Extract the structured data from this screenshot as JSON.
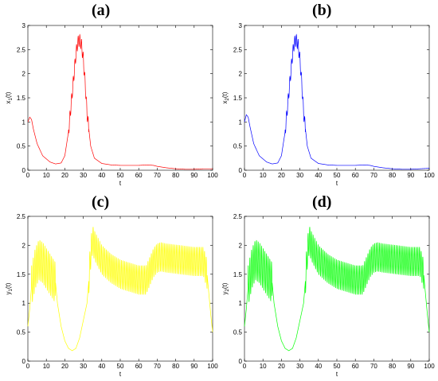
{
  "chart_data": [
    {
      "panel_label": "(a)",
      "type": "line",
      "xlabel": "t",
      "ylabel": "x",
      "ylabel_sub": "1",
      "ylabel_suffix": "(t)",
      "xlim": [
        0,
        100
      ],
      "ylim": [
        0,
        3
      ],
      "xticks": [
        0,
        10,
        20,
        30,
        40,
        50,
        60,
        70,
        80,
        90,
        100
      ],
      "yticks": [
        0,
        0.5,
        1,
        1.5,
        2,
        2.5,
        3
      ],
      "series": [
        {
          "color": "#ff0000",
          "x": [
            0,
            1,
            2,
            3,
            5,
            8,
            12,
            15,
            18,
            20,
            22,
            24,
            26,
            27,
            28,
            29,
            30,
            31,
            32,
            34,
            36,
            40,
            45,
            50,
            55,
            60,
            65,
            68,
            70,
            75,
            80,
            85,
            90,
            95,
            100
          ],
          "y": [
            1.0,
            1.1,
            1.05,
            0.85,
            0.55,
            0.3,
            0.17,
            0.13,
            0.15,
            0.3,
            0.8,
            1.6,
            2.4,
            2.65,
            2.7,
            2.6,
            2.3,
            1.8,
            1.2,
            0.5,
            0.25,
            0.14,
            0.11,
            0.1,
            0.1,
            0.1,
            0.11,
            0.1,
            0.08,
            0.05,
            0.03,
            0.02,
            0.02,
            0.03,
            0.03
          ]
        }
      ],
      "osc": {
        "from": 22,
        "to": 33,
        "amp": 0.12,
        "period": 0.9
      }
    },
    {
      "panel_label": "(b)",
      "type": "line",
      "xlabel": "t",
      "ylabel": "x",
      "ylabel_sub": "2",
      "ylabel_suffix": "(t)",
      "xlim": [
        0,
        100
      ],
      "ylim": [
        0,
        3
      ],
      "xticks": [
        0,
        10,
        20,
        30,
        40,
        50,
        60,
        70,
        80,
        90,
        100
      ],
      "yticks": [
        0,
        0.5,
        1,
        1.5,
        2,
        2.5,
        3
      ],
      "series": [
        {
          "color": "#0000ff",
          "x": [
            0,
            1,
            2,
            3,
            5,
            8,
            12,
            15,
            18,
            20,
            22,
            24,
            26,
            27,
            28,
            29,
            30,
            31,
            32,
            34,
            36,
            40,
            45,
            50,
            55,
            60,
            65,
            68,
            70,
            75,
            80,
            85,
            90,
            95,
            100
          ],
          "y": [
            1.0,
            1.15,
            1.1,
            0.9,
            0.55,
            0.3,
            0.17,
            0.13,
            0.15,
            0.3,
            0.8,
            1.6,
            2.4,
            2.65,
            2.7,
            2.6,
            2.3,
            1.8,
            1.2,
            0.5,
            0.25,
            0.14,
            0.11,
            0.1,
            0.1,
            0.1,
            0.11,
            0.1,
            0.08,
            0.05,
            0.03,
            0.02,
            0.02,
            0.03,
            0.04
          ]
        }
      ],
      "osc": {
        "from": 22,
        "to": 33,
        "amp": 0.12,
        "period": 0.9
      }
    },
    {
      "panel_label": "(c)",
      "type": "line",
      "xlabel": "t",
      "ylabel": "y",
      "ylabel_sub": "1",
      "ylabel_suffix": "(t)",
      "xlim": [
        0,
        100
      ],
      "ylim": [
        0,
        2.5
      ],
      "xticks": [
        0,
        10,
        20,
        30,
        40,
        50,
        60,
        70,
        80,
        90,
        100
      ],
      "yticks": [
        0,
        0.5,
        1,
        1.5,
        2,
        2.5
      ],
      "series": [
        {
          "color": "#ffff00",
          "x": [
            0,
            1,
            2,
            4,
            6,
            8,
            10,
            12,
            14,
            15,
            16,
            18,
            20,
            22,
            24,
            26,
            28,
            30,
            32,
            33,
            34,
            35,
            36,
            40,
            45,
            50,
            55,
            60,
            64,
            66,
            68,
            70,
            72,
            75,
            80,
            85,
            90,
            95,
            97,
            99,
            100
          ],
          "y": [
            0.6,
            0.9,
            1.3,
            1.6,
            1.75,
            1.7,
            1.6,
            1.5,
            1.4,
            1.35,
            1.0,
            0.6,
            0.35,
            0.22,
            0.18,
            0.22,
            0.4,
            0.7,
            1.0,
            1.4,
            1.85,
            2.1,
            2.0,
            1.75,
            1.6,
            1.5,
            1.45,
            1.4,
            1.4,
            1.55,
            1.7,
            1.78,
            1.8,
            1.78,
            1.76,
            1.74,
            1.72,
            1.72,
            1.5,
            0.8,
            0.5
          ]
        }
      ],
      "osc": [
        {
          "from": 2,
          "to": 15,
          "amp": 0.35,
          "period": 0.9
        },
        {
          "from": 33,
          "to": 97,
          "amp": 0.25,
          "period": 0.9
        }
      ]
    },
    {
      "panel_label": "(d)",
      "type": "line",
      "xlabel": "t",
      "ylabel": "y",
      "ylabel_sub": "2",
      "ylabel_suffix": "(t)",
      "xlim": [
        0,
        100
      ],
      "ylim": [
        0,
        2.5
      ],
      "xticks": [
        0,
        10,
        20,
        30,
        40,
        50,
        60,
        70,
        80,
        90,
        100
      ],
      "yticks": [
        0,
        0.5,
        1,
        1.5,
        2,
        2.5
      ],
      "series": [
        {
          "color": "#00ff00",
          "x": [
            0,
            1,
            2,
            4,
            6,
            8,
            10,
            12,
            14,
            15,
            16,
            18,
            20,
            22,
            24,
            26,
            28,
            30,
            32,
            33,
            34,
            35,
            36,
            40,
            45,
            50,
            55,
            60,
            64,
            66,
            68,
            70,
            72,
            75,
            80,
            85,
            90,
            95,
            97,
            99,
            100
          ],
          "y": [
            0.6,
            0.9,
            1.3,
            1.6,
            1.75,
            1.7,
            1.6,
            1.5,
            1.4,
            1.35,
            1.0,
            0.6,
            0.35,
            0.22,
            0.18,
            0.22,
            0.4,
            0.7,
            1.0,
            1.4,
            1.85,
            2.1,
            2.0,
            1.75,
            1.6,
            1.5,
            1.45,
            1.4,
            1.4,
            1.55,
            1.7,
            1.78,
            1.8,
            1.78,
            1.76,
            1.74,
            1.72,
            1.72,
            1.5,
            0.8,
            0.5
          ]
        }
      ],
      "osc": [
        {
          "from": 2,
          "to": 15,
          "amp": 0.35,
          "period": 0.9
        },
        {
          "from": 33,
          "to": 97,
          "amp": 0.25,
          "period": 0.9
        }
      ]
    }
  ]
}
